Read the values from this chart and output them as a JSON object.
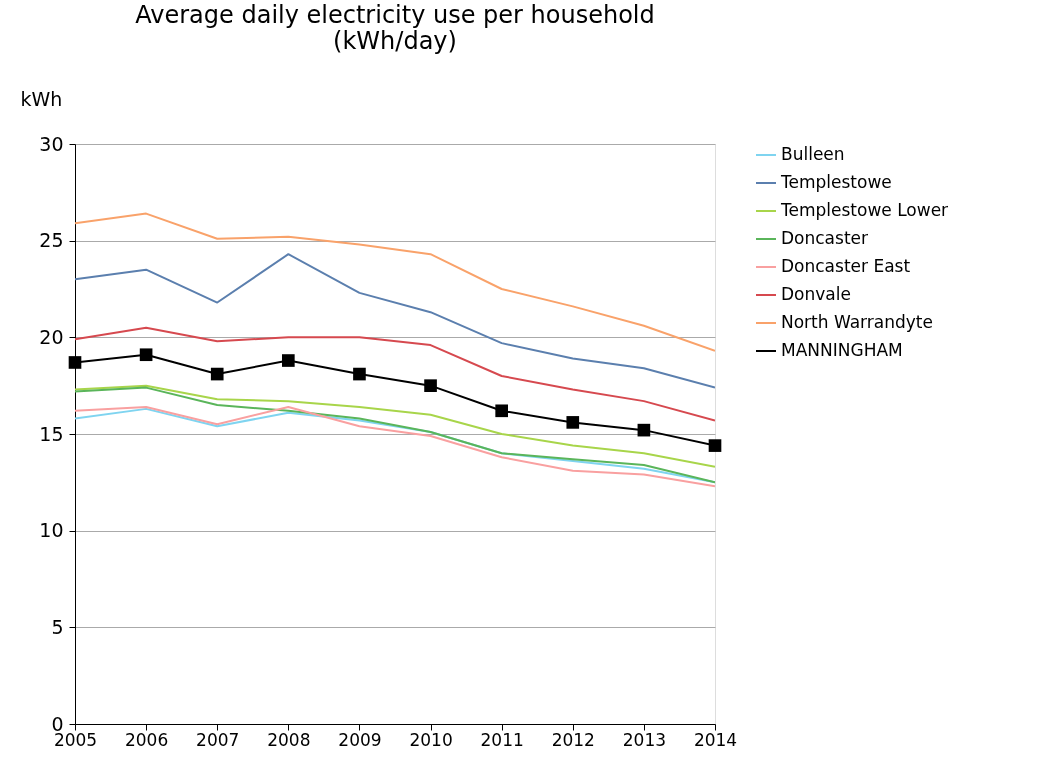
{
  "chart_data": {
    "type": "line",
    "title": "Average daily electricity use per household\n(kWh/day)",
    "ylabel": "kWh",
    "x": [
      2005,
      2006,
      2007,
      2008,
      2009,
      2010,
      2011,
      2012,
      2013,
      2014
    ],
    "xlim": [
      2005,
      2014
    ],
    "xticks": [
      2005,
      2006,
      2007,
      2008,
      2009,
      2010,
      2011,
      2012,
      2013,
      2014
    ],
    "ylim": [
      0,
      30
    ],
    "yticks": [
      0,
      5,
      10,
      15,
      20,
      25,
      30
    ],
    "grid": "y",
    "legend": "right",
    "marker": "none",
    "line_style": "solid",
    "series": [
      {
        "name": "Bulleen",
        "color": "#7fd4f0",
        "values": [
          15.8,
          16.3,
          15.4,
          16.1,
          15.7,
          15.1,
          14.0,
          13.6,
          13.2,
          12.5
        ]
      },
      {
        "name": "Templestowe",
        "color": "#5b7fae",
        "values": [
          23.0,
          23.5,
          21.8,
          24.3,
          22.3,
          21.3,
          19.7,
          18.9,
          18.4,
          17.4
        ]
      },
      {
        "name": "Templestowe Lower",
        "color": "#a8d54a",
        "values": [
          17.3,
          17.5,
          16.8,
          16.7,
          16.4,
          16.0,
          15.0,
          14.4,
          14.0,
          13.3
        ]
      },
      {
        "name": "Doncaster",
        "color": "#5ab55a",
        "values": [
          17.2,
          17.4,
          16.5,
          16.2,
          15.8,
          15.1,
          14.0,
          13.7,
          13.4,
          12.5
        ]
      },
      {
        "name": "Doncaster East",
        "color": "#f9a0a0",
        "values": [
          16.2,
          16.4,
          15.5,
          16.4,
          15.4,
          14.9,
          13.8,
          13.1,
          12.9,
          12.3
        ]
      },
      {
        "name": "Donvale",
        "color": "#d6494f",
        "values": [
          19.9,
          20.5,
          19.8,
          20.0,
          20.0,
          19.6,
          18.0,
          17.3,
          16.7,
          15.7
        ]
      },
      {
        "name": "North Warrandyte",
        "color": "#f9a26a",
        "values": [
          25.9,
          26.4,
          25.1,
          25.2,
          24.8,
          24.3,
          22.5,
          21.6,
          20.6,
          19.3
        ]
      },
      {
        "name": "MANNINGHAM",
        "color": "#000000",
        "marker": "square",
        "values": [
          18.7,
          19.1,
          18.1,
          18.8,
          18.1,
          17.5,
          16.2,
          15.6,
          15.2,
          14.4
        ]
      }
    ]
  }
}
